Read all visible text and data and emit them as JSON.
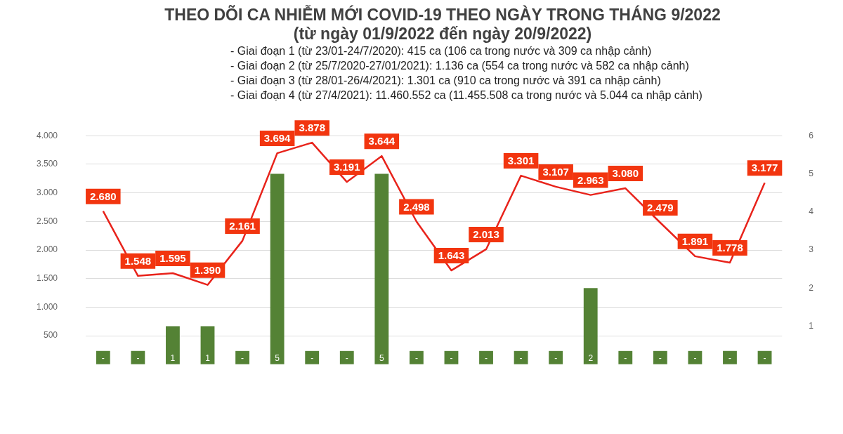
{
  "chart_data": {
    "type": "line",
    "title": "THEO DÕI CA NHIỄM MỚI COVID-19 THEO NGÀY TRONG THÁNG 9/2022",
    "subtitle": "(từ ngày 01/9/2022 đến ngày 20/9/2022)",
    "annotations": [
      "- Giai đoạn 1 (từ 23/01-24/7/2020): 415 ca (106 ca trong nước và 309 ca nhập cảnh)",
      "- Giai đoạn 2 (từ 25/7/2020-27/01/2021): 1.136 ca (554 ca trong nước và 582 ca nhập cảnh)",
      "- Giai đoạn 3 (từ 28/01-26/4/2021): 1.301 ca (910 ca trong nước và 391 ca nhập cảnh)",
      "- Giai đoạn 4 (từ 27/4/2021): 11.460.552 ca (11.455.508 ca trong nước và 5.044 ca nhập cảnh)"
    ],
    "categories": [
      null,
      null,
      null,
      null,
      null,
      null,
      null,
      null,
      null,
      null,
      null,
      null,
      null,
      null,
      null,
      null,
      null,
      null,
      null,
      null
    ],
    "series": [
      {
        "type": "bar",
        "axis": "y2",
        "color": "#548235",
        "values": [
          0.35,
          0.35,
          1,
          1,
          0.35,
          5,
          0.35,
          0.35,
          5,
          0.35,
          0.35,
          0.35,
          0.35,
          0.35,
          2,
          0.35,
          0.35,
          0.35,
          0.35,
          0.35
        ],
        "value_labels": [
          "-",
          "-",
          "1",
          "1",
          "-",
          "5",
          "-",
          "-",
          "5",
          "-",
          "-",
          "-",
          "-",
          "-",
          "2",
          "-",
          "-",
          "-",
          "-",
          "-"
        ]
      },
      {
        "color": "#e8231b",
        "values": [
          2680,
          1548,
          1595,
          1390,
          2161,
          3694,
          3878,
          3191,
          3644,
          2498,
          1643,
          2013,
          3301,
          3107,
          2963,
          3080,
          2479,
          1891,
          1778,
          3177
        ],
        "value_labels": [
          "2.680",
          "1.548",
          "1.595",
          "1.390",
          "2.161",
          "3.694",
          "3.878",
          "3.191",
          "3.644",
          "2.498",
          "1.643",
          "2.013",
          "3.301",
          "3.107",
          "2.963",
          "3.080",
          "2.479",
          "1.891",
          "1.778",
          "3.177"
        ]
      }
    ],
    "ylim": [
      0,
      4000
    ],
    "yticks": [
      {
        "value": 500,
        "label": "500"
      },
      {
        "value": 1000,
        "label": "1.000"
      },
      {
        "value": 1500,
        "label": "1.500"
      },
      {
        "value": 2000,
        "label": "2.000"
      },
      {
        "value": 2500,
        "label": "2.500"
      },
      {
        "value": 3000,
        "label": "3.000"
      },
      {
        "value": 3500,
        "label": "3.500"
      },
      {
        "value": 4000,
        "label": "4.000"
      }
    ],
    "y2lim": [
      0,
      6
    ],
    "y2ticks": [
      1,
      2,
      3,
      4,
      5,
      6
    ],
    "grid": "y",
    "legend": false,
    "marker": "none",
    "line_style": "solid"
  }
}
